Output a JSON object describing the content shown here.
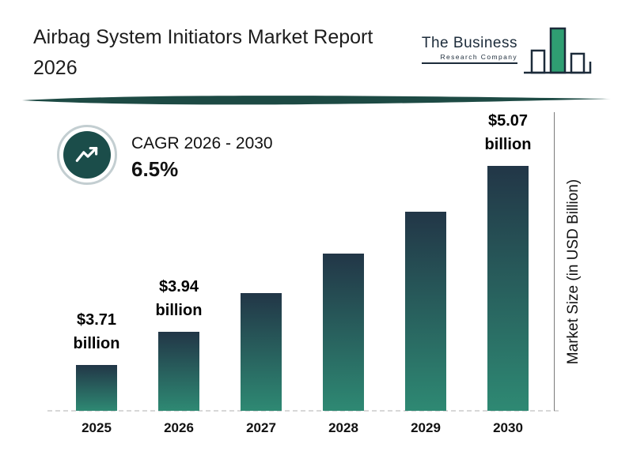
{
  "header": {
    "title_line1": "Airbag System Initiators Market Report",
    "title_line2": "2026",
    "logo": {
      "name": "The Business",
      "subname": "Research Company"
    }
  },
  "cagr": {
    "label": "CAGR 2026 - 2030",
    "value": "6.5%"
  },
  "chart_data": {
    "type": "bar",
    "title": "Airbag System Initiators Market Report 2026",
    "categories": [
      "2025",
      "2026",
      "2027",
      "2028",
      "2029",
      "2030"
    ],
    "values": [
      3.71,
      3.94,
      4.2,
      4.47,
      4.76,
      5.07
    ],
    "value_labels": [
      {
        "category": "2025",
        "line1": "$3.71",
        "line2": "billion"
      },
      {
        "category": "2026",
        "line1": "$3.94",
        "line2": "billion"
      },
      {
        "category": "2030",
        "line1": "$5.07",
        "line2": "billion"
      }
    ],
    "xlabel": "",
    "ylabel": "Market Size (in USD Billion)",
    "ylim": [
      3.4,
      5.2
    ],
    "grid": false,
    "legend": "none",
    "colors": {
      "bar_gradient_top": "#223647",
      "bar_gradient_bottom": "#2e8973",
      "accent_teal": "#1b4d4a",
      "logo_navy": "#1c2b3a",
      "logo_green": "#2f9e72"
    }
  }
}
